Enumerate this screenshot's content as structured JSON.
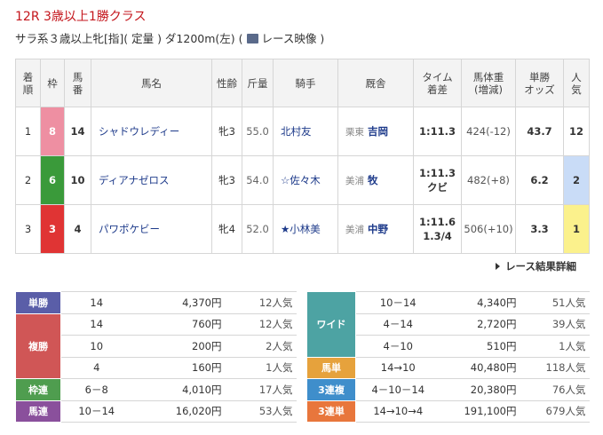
{
  "header": {
    "title": "12R 3歳以上1勝クラス",
    "conditions": "サラ系３歳以上牝[指]( 定量 ) ダ1200m(左)",
    "video_open": "(",
    "video_label": "レース映像",
    "video_close": ")"
  },
  "results": {
    "columns": [
      [
        "着",
        "順"
      ],
      [
        "枠"
      ],
      [
        "馬",
        "番"
      ],
      [
        "馬名"
      ],
      [
        "性齢"
      ],
      [
        "斤量"
      ],
      [
        "騎手"
      ],
      [
        "厩舎"
      ],
      [
        "タイム",
        "着差"
      ],
      [
        "馬体重",
        "(増減)"
      ],
      [
        "単勝",
        "オッズ"
      ],
      [
        "人",
        "気"
      ]
    ],
    "rows": [
      {
        "rank": "1",
        "waku": "8",
        "waku_color": "#ee8fa2",
        "umaban": "14",
        "name": "シャドウレディー",
        "sex_age": "牝3",
        "weight": "55.0",
        "jockey": "北村友",
        "stable_area": "栗東",
        "trainer": "吉岡",
        "time": "1:11.3",
        "body_weight": "424(-12)",
        "odds": "43.7",
        "popularity": "12"
      },
      {
        "rank": "2",
        "waku": "6",
        "waku_color": "#3a9a3a",
        "umaban": "10",
        "name": "ディアナゼロス",
        "sex_age": "牝3",
        "weight": "54.0",
        "jockey": "☆佐々木",
        "stable_area": "美浦",
        "trainer": "牧",
        "time": "1:11.3",
        "margin": "クビ",
        "body_weight": "482(+8)",
        "odds": "6.2",
        "popularity": "2",
        "popularity_color": "#c9dcf7"
      },
      {
        "rank": "3",
        "waku": "3",
        "waku_color": "#e03434",
        "umaban": "4",
        "name": "パワポケビー",
        "sex_age": "牝4",
        "weight": "52.0",
        "jockey": "★小林美",
        "stable_area": "美浦",
        "trainer": "中野",
        "time": "1:11.6",
        "margin": "1.3/4",
        "body_weight": "506(+10)",
        "odds": "3.3",
        "popularity": "1",
        "popularity_color": "#fbf18c"
      }
    ]
  },
  "detail_link": "レース結果詳細",
  "payouts": {
    "left": [
      {
        "label": "単勝",
        "color": "#5a5ea8",
        "entries": [
          [
            "14",
            "4,370円",
            "12人気"
          ]
        ]
      },
      {
        "label": "複勝",
        "color": "#d05656",
        "entries": [
          [
            "14",
            "760円",
            "12人気"
          ],
          [
            "10",
            "200円",
            "2人気"
          ],
          [
            "4",
            "160円",
            "1人気"
          ]
        ]
      },
      {
        "label": "枠連",
        "color": "#4f9d4f",
        "entries": [
          [
            "6－8",
            "4,010円",
            "17人気"
          ]
        ]
      },
      {
        "label": "馬連",
        "color": "#8a509c",
        "entries": [
          [
            "10－14",
            "16,020円",
            "53人気"
          ]
        ]
      }
    ],
    "right": [
      {
        "label": "ワイド",
        "color": "#4da3a3",
        "entries": [
          [
            "10－14",
            "4,340円",
            "51人気"
          ],
          [
            "4－14",
            "2,720円",
            "39人気"
          ],
          [
            "4－10",
            "510円",
            "1人気"
          ]
        ]
      },
      {
        "label": "馬単",
        "color": "#e6a23c",
        "entries": [
          [
            "14→10",
            "40,480円",
            "118人気"
          ]
        ]
      },
      {
        "label": "3連複",
        "color": "#3f8ecb",
        "entries": [
          [
            "4－10－14",
            "20,380円",
            "76人気"
          ]
        ]
      },
      {
        "label": "3連単",
        "color": "#e8763c",
        "entries": [
          [
            "14→10→4",
            "191,100円",
            "679人気"
          ]
        ]
      }
    ]
  }
}
